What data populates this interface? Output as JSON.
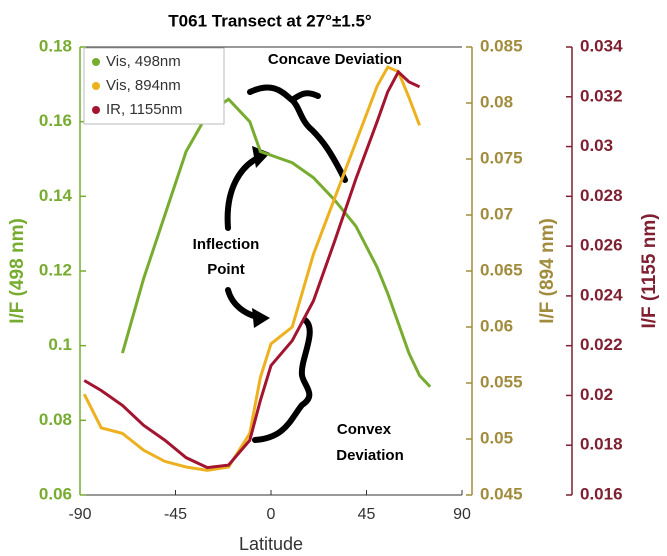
{
  "chart_data": {
    "type": "line",
    "title": "T061 Transect at 27°±1.5°",
    "x_label": "Latitude",
    "y_label": "I/F (498 nm)",
    "y2_label": "I/F (894 nm)",
    "y3_label": "I/F (1155 nm)",
    "x": [
      -88,
      -80,
      -70,
      -60,
      -50,
      -40,
      -30,
      -20,
      -10,
      -5,
      0,
      10,
      20,
      30,
      40,
      50,
      55,
      60,
      65,
      70,
      75
    ],
    "series": [
      {
        "name": "Vis, 498nm",
        "color": "#77ac30",
        "axis": "y",
        "values": [
          null,
          null,
          0.098,
          0.118,
          0.135,
          0.152,
          0.162,
          0.166,
          0.16,
          0.152,
          0.151,
          0.149,
          0.145,
          0.139,
          0.132,
          0.121,
          0.114,
          0.106,
          0.098,
          0.092,
          0.089
        ]
      },
      {
        "name": "Vis, 894nm",
        "color": "#edb120",
        "axis": "y2",
        "values": [
          0.054,
          0.051,
          0.0505,
          0.049,
          0.048,
          0.0475,
          0.0472,
          0.0475,
          0.0505,
          0.0555,
          0.0585,
          0.06,
          0.0665,
          0.0715,
          0.0765,
          0.0815,
          0.0832,
          0.0828,
          0.0805,
          0.078,
          null
        ]
      },
      {
        "name": "IR, 1155nm",
        "color": "#a2142f",
        "axis": "y3",
        "values": [
          0.0206,
          0.0202,
          0.0196,
          0.0188,
          0.0182,
          0.0175,
          0.0171,
          0.0172,
          0.0182,
          0.0198,
          0.0212,
          0.0222,
          0.0238,
          0.0262,
          0.0287,
          0.031,
          0.0322,
          0.033,
          0.0326,
          0.0324,
          null
        ]
      }
    ],
    "xlim": [
      -90,
      90
    ],
    "xticks": [
      -90,
      -45,
      0,
      45,
      90
    ],
    "ylim": [
      0.06,
      0.18
    ],
    "yticks": [
      0.06,
      0.08,
      0.1,
      0.12,
      0.14,
      0.16,
      0.18
    ],
    "y2lim": [
      0.045,
      0.085
    ],
    "y2ticks": [
      0.045,
      0.05,
      0.055,
      0.06,
      0.065,
      0.07,
      0.075,
      0.08,
      0.085
    ],
    "y3lim": [
      0.016,
      0.034
    ],
    "y3ticks": [
      0.016,
      0.018,
      0.02,
      0.022,
      0.024,
      0.026,
      0.028,
      0.03,
      0.032,
      0.034
    ],
    "legend": "upper left",
    "annotations": [
      "Concave Deviation",
      "Inflection",
      "Point",
      "Convex",
      "Deviation"
    ]
  }
}
